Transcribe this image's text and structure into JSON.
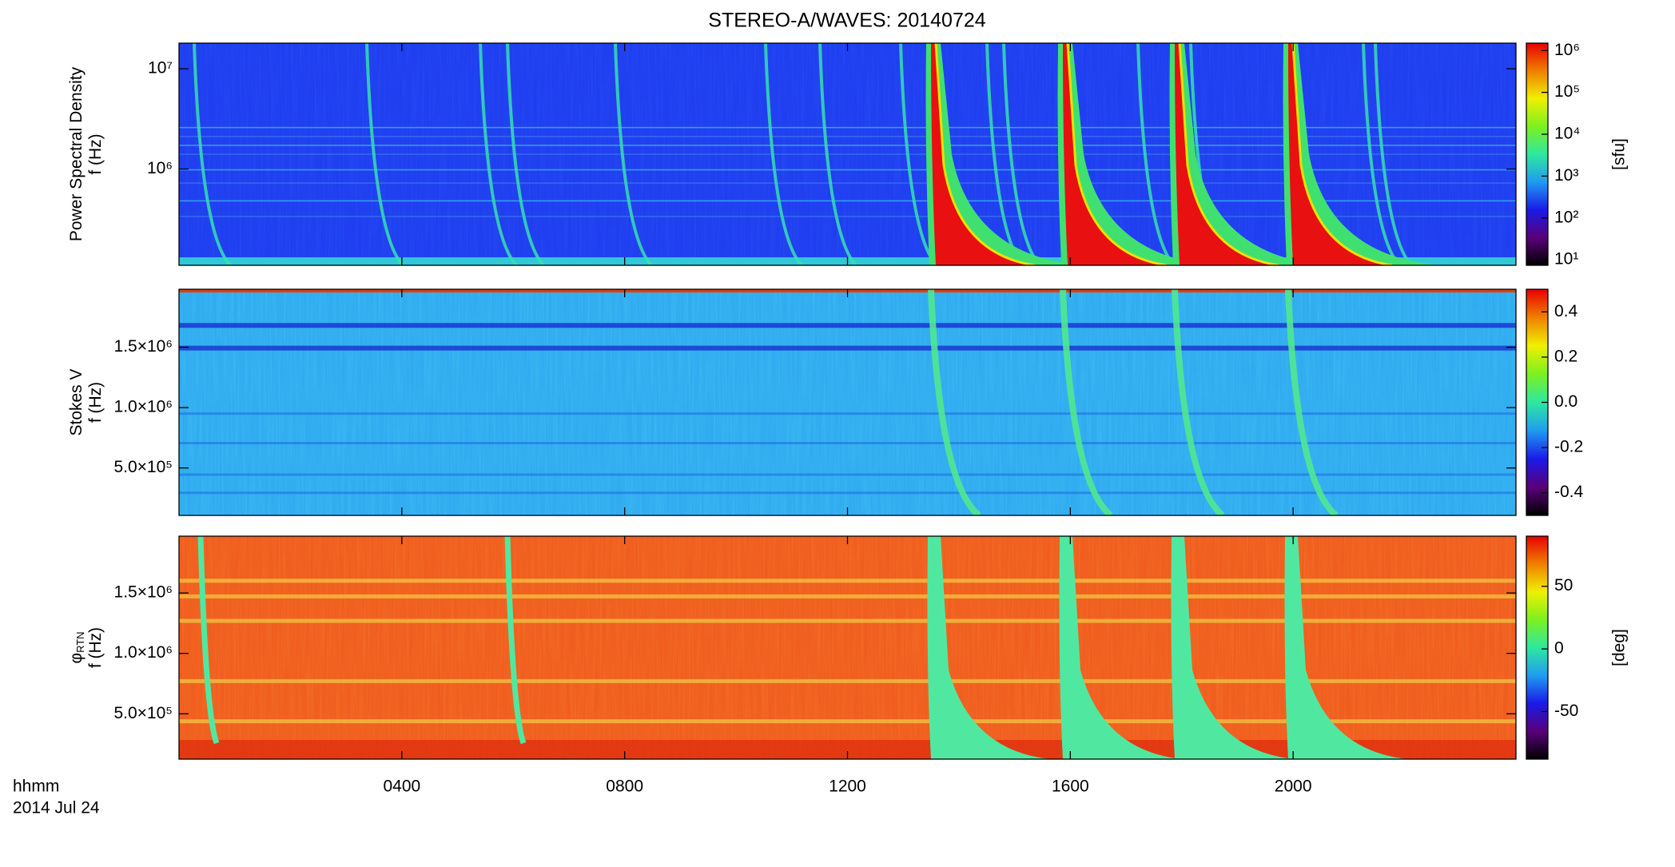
{
  "title": "STEREO-A/WAVES: 20140724",
  "x_axis": {
    "label": "hhmm",
    "date": "2014 Jul 24"
  },
  "chart_data": [
    {
      "type": "heatmap",
      "ylabel": [
        "Power Spectral Density",
        "f (Hz)"
      ],
      "ylog": true,
      "ylim": [
        110000,
        18000000
      ],
      "yticks": [
        {
          "value": 1000000,
          "label": "10⁶"
        },
        {
          "value": 10000000,
          "label": "10⁷"
        }
      ],
      "xlim": [
        0,
        24
      ],
      "xticks": [
        4,
        8,
        12,
        16,
        20
      ],
      "zlog": true,
      "zlim": [
        7.4,
        1500000
      ],
      "zticks": [
        {
          "value": 10,
          "label": "10¹"
        },
        {
          "value": 100,
          "label": "10²"
        },
        {
          "value": 1000,
          "label": "10³"
        },
        {
          "value": 10000,
          "label": "10⁴"
        },
        {
          "value": 100000,
          "label": "10⁵"
        },
        {
          "value": 1000000,
          "label": "10⁶"
        }
      ],
      "zlabel": "[sfu]",
      "colormap": [
        "#000000",
        "#5a007a",
        "#1a1ae8",
        "#1f9cf0",
        "#2ee8a0",
        "#7cf020",
        "#f0f000",
        "#f08000",
        "#e80000"
      ]
    },
    {
      "type": "heatmap",
      "ylabel": [
        "Stokes V",
        "f (Hz)"
      ],
      "ylog": false,
      "ylim": [
        107000,
        1980000
      ],
      "yticks": [
        {
          "value": 500000,
          "label": "5.0×10⁵"
        },
        {
          "value": 1000000,
          "label": "1.0×10⁶"
        },
        {
          "value": 1500000,
          "label": "1.5×10⁶"
        }
      ],
      "xlim": [
        0,
        24
      ],
      "xticks": [
        4,
        8,
        12,
        16,
        20
      ],
      "zlog": false,
      "zlim": [
        -0.5,
        0.5
      ],
      "zticks": [
        {
          "value": -0.4,
          "label": "-0.4"
        },
        {
          "value": -0.2,
          "label": "-0.2"
        },
        {
          "value": 0,
          "label": "0.0"
        },
        0.2,
        0.4
      ],
      "colormap": [
        "#000000",
        "#5a007a",
        "#1a1ae8",
        "#1f9cf0",
        "#2ee8a0",
        "#7cf020",
        "#f0f000",
        "#f08000",
        "#e80000"
      ]
    },
    {
      "type": "heatmap",
      "ylabel": [
        "φ",
        "f (Hz)"
      ],
      "ylabel_sub": "RTN",
      "ylog": false,
      "ylim": [
        125000,
        1970000
      ],
      "yticks": [
        {
          "value": 500000,
          "label": "5.0×10⁵"
        },
        {
          "value": 1000000,
          "label": "1.0×10⁶"
        },
        {
          "value": 1500000,
          "label": "1.5×10⁶"
        }
      ],
      "xlim": [
        0,
        24
      ],
      "xticks": [
        {
          "value": 4,
          "label": "0400"
        },
        {
          "value": 8,
          "label": "0800"
        },
        {
          "value": 12,
          "label": "1200"
        },
        {
          "value": 16,
          "label": "1600"
        },
        {
          "value": 20,
          "label": "2000"
        }
      ],
      "zlog": false,
      "zlim": [
        -88,
        90
      ],
      "zticks": [
        -50,
        0,
        50
      ],
      "zlabel": "[deg]",
      "colormap": [
        "#000000",
        "#5a007a",
        "#1a1ae8",
        "#1f9cf0",
        "#2ee8a0",
        "#7cf020",
        "#f0f000",
        "#f08000",
        "#e80000"
      ]
    }
  ]
}
